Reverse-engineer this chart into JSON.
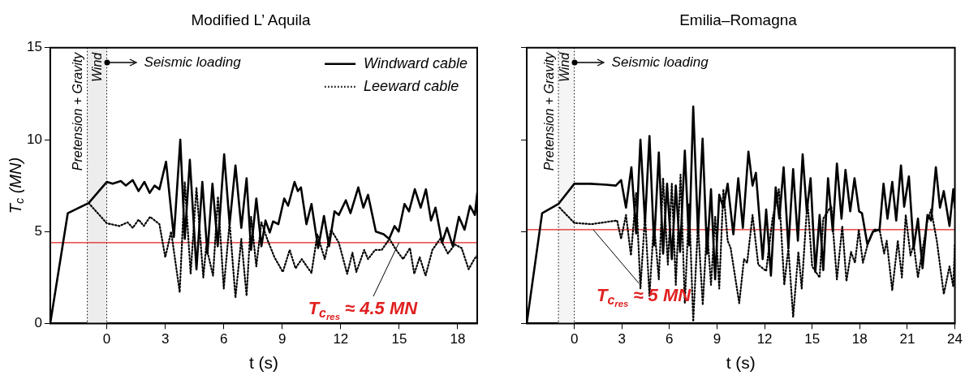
{
  "chart_data": [
    {
      "type": "line",
      "title": "Modified L’ Aquila",
      "xlabel": "t (s)",
      "ylabel": "T$_{c}$ (MN)",
      "xlim": [
        -2.9,
        19
      ],
      "xticks": [
        0,
        3,
        6,
        9,
        12,
        15,
        18
      ],
      "ylim": [
        0,
        15
      ],
      "yticks": [
        0,
        5,
        10,
        15
      ],
      "grid": false,
      "legend": "top right",
      "marker": "none",
      "series": [
        {
          "name": "Windward cable",
          "color": "#000000",
          "line_style": "solid",
          "x": [
            -2.9,
            -2.0,
            -0.93,
            0,
            0.3,
            0.72,
            0.98,
            1.33,
            1.63,
            1.93,
            2.2,
            2.45,
            2.7,
            3.04,
            3.44,
            3.77,
            4.0,
            4.26,
            4.6,
            4.9,
            5.16,
            5.42,
            5.69,
            6.02,
            6.3,
            6.6,
            6.9,
            7.17,
            7.4,
            7.67,
            7.93,
            8.14,
            8.36,
            8.53,
            8.8,
            9.1,
            9.3,
            9.63,
            9.8,
            9.96,
            10.24,
            10.5,
            10.84,
            11.14,
            11.4,
            11.68,
            11.9,
            12.26,
            12.5,
            12.9,
            13.16,
            13.4,
            13.8,
            14.2,
            14.48,
            14.76,
            14.97,
            15.27,
            15.5,
            15.8,
            16.1,
            16.37,
            16.63,
            16.86,
            17.2,
            17.45,
            17.75,
            18.06,
            18.35,
            18.63,
            18.88,
            19
          ],
          "values": [
            0,
            6.0,
            6.55,
            7.7,
            7.6,
            7.75,
            7.5,
            7.8,
            7.2,
            7.7,
            7.1,
            7.5,
            7.3,
            8.8,
            4.7,
            10.0,
            4.6,
            8.9,
            2.95,
            7.7,
            3.8,
            7.6,
            4.2,
            9.2,
            5.4,
            8.6,
            5.2,
            7.9,
            4.0,
            6.8,
            4.2,
            5.6,
            4.95,
            5.55,
            5.4,
            6.8,
            6.4,
            7.7,
            7.2,
            7.4,
            5.4,
            6.5,
            4.1,
            5.85,
            4.2,
            6.1,
            5.9,
            6.7,
            6.0,
            7.4,
            6.3,
            7.0,
            5.0,
            4.85,
            4.6,
            5.3,
            5.0,
            6.5,
            6.1,
            7.3,
            6.3,
            7.3,
            5.6,
            6.3,
            4.4,
            5.2,
            4.2,
            5.8,
            5.1,
            6.4,
            5.9,
            7.1
          ]
        },
        {
          "name": "Leeward cable",
          "color": "#000000",
          "line_style": "dotted",
          "x": [
            -0.93,
            0,
            0.65,
            1.07,
            1.33,
            1.63,
            1.9,
            2.22,
            2.7,
            3.0,
            3.3,
            3.74,
            4.0,
            4.3,
            4.6,
            4.95,
            5.1,
            5.45,
            5.7,
            6.0,
            6.3,
            6.6,
            6.9,
            7.17,
            7.4,
            7.67,
            7.93,
            8.26,
            8.6,
            9.03,
            9.38,
            9.68,
            10.0,
            10.5,
            10.8,
            11.18,
            11.5,
            11.9,
            12.33,
            12.6,
            12.8,
            13.2,
            13.4,
            13.76,
            14.1,
            14.5,
            14.84,
            15.2,
            15.55,
            15.77,
            16.05,
            16.35,
            16.7,
            17.1,
            17.5,
            17.85,
            18.2,
            18.56,
            18.85,
            19
          ],
          "values": [
            6.55,
            5.45,
            5.3,
            5.5,
            5.2,
            5.65,
            5.3,
            5.8,
            5.4,
            3.6,
            5.0,
            1.7,
            7.7,
            2.7,
            7.4,
            2.5,
            4.2,
            2.6,
            6.9,
            1.9,
            5.5,
            1.4,
            4.6,
            1.5,
            5.8,
            3.1,
            5.5,
            4.5,
            3.6,
            2.8,
            4.0,
            3.0,
            3.5,
            2.75,
            4.85,
            3.5,
            5.1,
            4.4,
            2.7,
            3.85,
            2.8,
            4.0,
            3.5,
            4.0,
            4.0,
            4.6,
            4.0,
            3.5,
            4.1,
            2.7,
            3.6,
            2.6,
            4.0,
            4.6,
            3.8,
            4.3,
            4.1,
            2.95,
            3.5,
            3.7
          ]
        }
      ],
      "bands": [
        {
          "axis": "x",
          "from": -1,
          "to": 0,
          "color": "#ededed"
        }
      ],
      "ref_lines": [
        {
          "axis": "x",
          "value": -1,
          "label": "Pretension + Gravity",
          "color": "#000000",
          "line_style": "dotted"
        },
        {
          "axis": "x",
          "value": 0,
          "label": "Wind",
          "color": "#000000",
          "line_style": "dotted"
        },
        {
          "axis": "y",
          "value": 4.4,
          "color": "#e02020",
          "line_style": "solid"
        }
      ],
      "annotations": [
        {
          "text": "Seismic loading",
          "x": 0,
          "y": 14.2
        },
        {
          "text": "T$_{c}$$_{res}$ ≈ 4.5 MN",
          "x": 15,
          "y": 4.4
        }
      ]
    },
    {
      "type": "line",
      "title": "Emilia–Romagna",
      "xlabel": "t (s)",
      "xlim": [
        -3,
        24
      ],
      "xticks": [
        0,
        3,
        6,
        9,
        12,
        15,
        18,
        21,
        24
      ],
      "ylim": [
        0,
        15
      ],
      "yticks": [
        0,
        5,
        10,
        15
      ],
      "grid": false,
      "tick_labels": "x",
      "marker": "none",
      "series": [
        {
          "color": "#000000",
          "line_style": "solid",
          "x": [
            -3,
            -2.03,
            -1.0,
            0,
            1.0,
            2.0,
            2.62,
            2.95,
            3.26,
            3.6,
            3.9,
            4.17,
            4.46,
            4.74,
            5.03,
            5.33,
            5.6,
            5.85,
            6.15,
            6.4,
            6.67,
            6.97,
            7.24,
            7.5,
            7.8,
            8.09,
            8.37,
            8.62,
            8.88,
            9.14,
            9.4,
            9.67,
            10.03,
            10.34,
            10.63,
            10.98,
            11.24,
            11.45,
            11.88,
            12.1,
            12.4,
            12.7,
            12.93,
            13.2,
            13.5,
            13.8,
            14.1,
            14.4,
            14.66,
            14.9,
            15.2,
            15.47,
            15.7,
            16.0,
            16.3,
            16.56,
            16.85,
            17.1,
            17.4,
            17.67,
            17.96,
            18.14,
            18.48,
            18.83,
            19.25,
            19.5,
            19.75,
            20.05,
            20.3,
            20.6,
            20.8,
            21.1,
            21.4,
            21.67,
            21.96,
            22.27,
            22.5,
            22.8,
            23.06,
            23.3,
            23.66,
            23.9,
            24
          ],
          "values": [
            0,
            6.0,
            6.5,
            7.6,
            7.6,
            7.55,
            7.5,
            7.8,
            6.3,
            8.5,
            4.9,
            10.0,
            5.5,
            10.2,
            4.25,
            9.3,
            3.8,
            7.6,
            3.5,
            7.5,
            3.9,
            9.4,
            4.25,
            11.8,
            4.9,
            10.05,
            3.8,
            7.3,
            2.4,
            7.0,
            6.3,
            7.6,
            4.85,
            7.9,
            5.2,
            9.35,
            7.5,
            8.2,
            3.5,
            6.2,
            2.6,
            7.4,
            5.7,
            8.5,
            4.1,
            8.4,
            4.5,
            9.2,
            6.1,
            7.9,
            2.8,
            5.9,
            2.9,
            7.9,
            5.0,
            8.7,
            5.7,
            8.35,
            6.1,
            7.9,
            6.1,
            6.0,
            4.3,
            5.0,
            5.1,
            7.6,
            5.7,
            7.7,
            5.6,
            8.6,
            6.35,
            8.0,
            4.1,
            5.7,
            3.0,
            5.9,
            5.6,
            8.5,
            6.3,
            7.2,
            5.3,
            7.3,
            6.3
          ]
        },
        {
          "color": "#000000",
          "line_style": "dotted",
          "x": [
            -0.93,
            0,
            1.07,
            2.28,
            2.7,
            2.95,
            3.26,
            3.57,
            3.9,
            4.17,
            4.46,
            4.74,
            5.02,
            5.33,
            5.6,
            5.9,
            6.15,
            6.4,
            6.7,
            6.97,
            7.24,
            7.5,
            7.8,
            8.1,
            8.37,
            8.62,
            8.88,
            9.14,
            9.4,
            9.67,
            9.86,
            10.4,
            10.7,
            10.9,
            11.24,
            11.6,
            12.1,
            12.5,
            12.9,
            13.24,
            13.5,
            13.8,
            14.13,
            14.34,
            14.7,
            15.0,
            15.47,
            15.7,
            16.2,
            16.56,
            16.9,
            17.16,
            17.45,
            17.7,
            17.94,
            18.2,
            18.5,
            18.9,
            19.25,
            19.54,
            19.7,
            20.05,
            20.4,
            20.66,
            20.9,
            21.2,
            21.4,
            21.67,
            21.9,
            22.27,
            22.5,
            22.86,
            23.3,
            23.66,
            23.9,
            24
          ],
          "values": [
            6.3,
            5.47,
            5.4,
            5.55,
            5.6,
            4.6,
            5.9,
            3.7,
            7.1,
            1.9,
            5.9,
            1.5,
            5.5,
            2.4,
            7.9,
            3.2,
            7.6,
            2.1,
            8.1,
            1.1,
            6.5,
            0.1,
            5.4,
            1.0,
            5.2,
            2.1,
            5.8,
            1.9,
            7.3,
            4.5,
            4.1,
            1.1,
            3.5,
            3.3,
            5.9,
            3.2,
            2.85,
            5.7,
            7.3,
            2.1,
            4.1,
            0.35,
            3.9,
            1.9,
            6.7,
            3.1,
            2.5,
            5.7,
            6.4,
            2.4,
            5.3,
            2.3,
            3.9,
            3.3,
            5.1,
            3.3,
            4.3,
            5.1,
            5.1,
            3.8,
            4.5,
            1.8,
            4.5,
            2.5,
            5.9,
            3.7,
            4.3,
            2.5,
            3.7,
            5.6,
            6.2,
            4.5,
            1.6,
            3.1,
            2.0,
            4.3
          ]
        }
      ],
      "bands": [
        {
          "axis": "x",
          "from": -1,
          "to": 0,
          "color": "#f5f5f5"
        }
      ],
      "ref_lines": [
        {
          "axis": "x",
          "value": -1,
          "label": "Pretension + Gravity",
          "color": "#000000",
          "line_style": "dotted"
        },
        {
          "axis": "x",
          "value": 0,
          "label": "Wind",
          "color": "#000000",
          "line_style": "dotted"
        },
        {
          "axis": "y",
          "value": 5.1,
          "color": "#e02020",
          "line_style": "solid"
        }
      ],
      "annotations": [
        {
          "text": "Seismic loading",
          "x": 0,
          "y": 14.2
        },
        {
          "text": "T$_{c}$$_{res}$ ≈ 5 MN",
          "x": 1.2,
          "y": 5.1
        }
      ]
    }
  ]
}
